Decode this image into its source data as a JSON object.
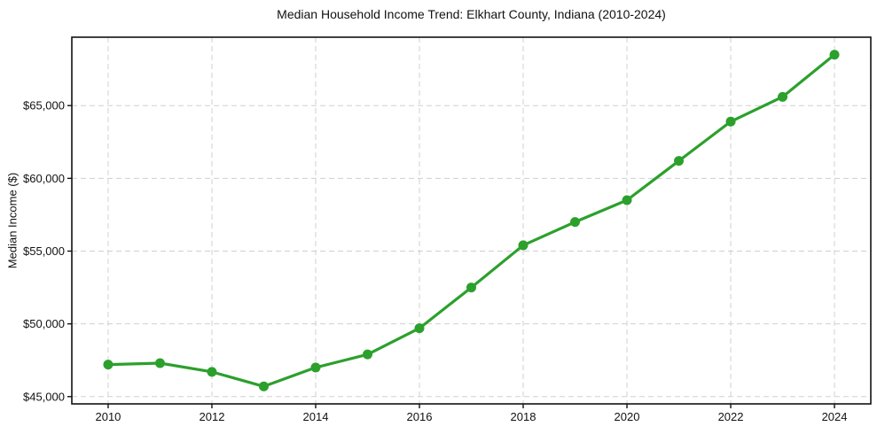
{
  "chart_data": {
    "type": "line",
    "title": "Median Household Income Trend: Elkhart County, Indiana (2010-2024)",
    "xlabel": "",
    "ylabel": "Median Income ($)",
    "series": [
      {
        "name": "Median Household Income",
        "x": [
          2010,
          2011,
          2012,
          2013,
          2014,
          2015,
          2016,
          2017,
          2018,
          2019,
          2020,
          2021,
          2022,
          2023,
          2024
        ],
        "values": [
          47200,
          47300,
          46700,
          45700,
          47000,
          47900,
          49700,
          52500,
          55400,
          57000,
          58500,
          61200,
          63900,
          65600,
          68500
        ]
      }
    ],
    "xlim": [
      2009.3,
      2024.7
    ],
    "ylim": [
      44500,
      69700
    ],
    "x_ticks": [
      2010,
      2012,
      2014,
      2016,
      2018,
      2020,
      2022,
      2024
    ],
    "x_tick_labels": [
      "2010",
      "2012",
      "2014",
      "2016",
      "2018",
      "2020",
      "2022",
      "2024"
    ],
    "y_ticks": [
      45000,
      50000,
      55000,
      60000,
      65000
    ],
    "y_tick_labels": [
      "$45,000",
      "$50,000",
      "$55,000",
      "$60,000",
      "$65,000"
    ],
    "grid": "dashed-both-axes",
    "legend": "none",
    "marker": "circle",
    "colors": {
      "line": "#2ca02c",
      "marker": "#2ca02c",
      "grid": "#d0d0d0",
      "spine": "#121212",
      "text": "#111111",
      "background": "#ffffff"
    }
  }
}
